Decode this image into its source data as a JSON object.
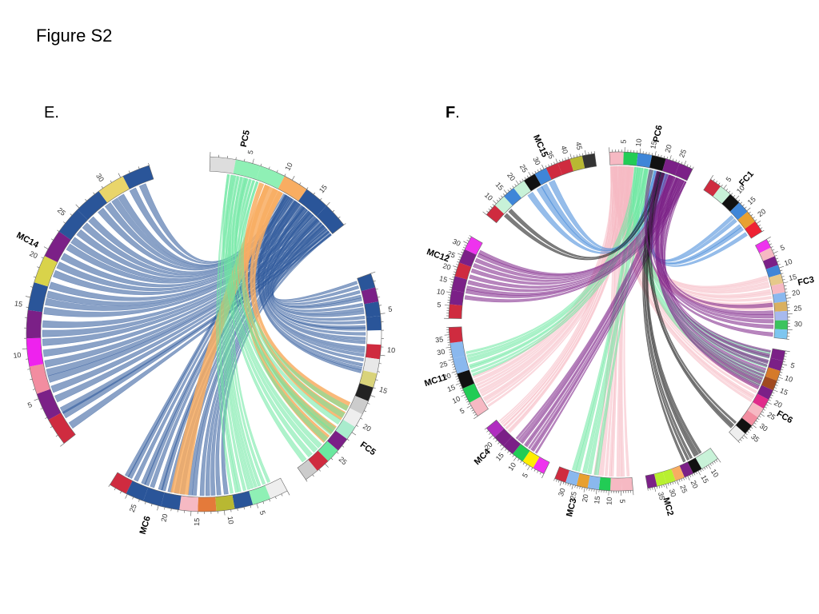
{
  "figure_title": "Figure S2",
  "colors": {
    "blue": "#2a5599",
    "orange": "#f8ad62",
    "green": "#6be8a0",
    "purple": "#7b2087",
    "pink": "#f6b9c3",
    "black": "#111111",
    "lightblue": "#3f86d8"
  },
  "panels": [
    {
      "id": "E",
      "label_text": "E",
      "label_punct": ".",
      "chromosomes": [
        {
          "name": "PC5",
          "ticks": [
            "5",
            "10",
            "15"
          ],
          "segments": [
            "#dddddd",
            "#8ff0b5",
            "#8ff0b5",
            "#f8ad62",
            "#2a5599",
            "#2a5599"
          ]
        },
        {
          "name": "FC5",
          "ticks": [
            "5",
            "10",
            "15",
            "20",
            "25"
          ],
          "segments": [
            "#2a5599",
            "#7b2087",
            "#2a5599",
            "#2a5599",
            "#ffffff",
            "#cf2b3f",
            "#e8e8e8",
            "#d9d37a",
            "#222222",
            "#cccccc",
            "#eeeeee",
            "#a9eccd",
            "#7b2087",
            "#6be8a0",
            "#cf2b3f",
            "#cccccc"
          ]
        },
        {
          "name": "MC6",
          "ticks": [
            "5",
            "10",
            "15",
            "20",
            "25"
          ],
          "segments": [
            "#eeeeee",
            "#8ff0b5",
            "#2a5599",
            "#b8b832",
            "#e47a3a",
            "#f6b9c3",
            "#2a5599",
            "#2a5599",
            "#2a5599",
            "#cf2b3f"
          ]
        },
        {
          "name": "MC14",
          "ticks": [
            "5",
            "10",
            "15",
            "20",
            "25",
            "30"
          ],
          "segments": [
            "#cf2b3f",
            "#7b2087",
            "#f28da0",
            "#ee22ee",
            "#7b2087",
            "#2a5599",
            "#d9d34a",
            "#7b2087",
            "#2a5599",
            "#2a5599",
            "#e9d56a",
            "#2a5599"
          ]
        }
      ]
    },
    {
      "id": "F",
      "label_text": "F",
      "label_punct": ".",
      "chromosomes": [
        {
          "name": "PC6",
          "ticks": [
            "5",
            "10",
            "15",
            "20",
            "25"
          ],
          "segments": [
            "#f6b9c3",
            "#22cc55",
            "#3f86d8",
            "#111111",
            "#7b2087",
            "#7b2087"
          ]
        },
        {
          "name": "FC1",
          "ticks": [
            "5",
            "10",
            "15",
            "20"
          ],
          "segments": [
            "#cf2b3f",
            "#c8f2d8",
            "#111111",
            "#3f86d8",
            "#e8a030",
            "#ee2233"
          ]
        },
        {
          "name": "FC3",
          "ticks": [
            "5",
            "10",
            "15",
            "20",
            "25",
            "30"
          ],
          "segments": [
            "#ee33ee",
            "#f6b9c3",
            "#7b2087",
            "#3f86d8",
            "#e6c98a",
            "#f6b9c3",
            "#8ab8ee",
            "#d9b060",
            "#a7b9ee",
            "#3cc35d",
            "#7dc6f0"
          ]
        },
        {
          "name": "FC6",
          "ticks": [
            "5",
            "10",
            "15",
            "20",
            "25",
            "30",
            "35"
          ],
          "segments": [
            "#7b2087",
            "#7b2087",
            "#d57a2a",
            "#a04a20",
            "#7b2087",
            "#e02b8b",
            "#f6b9c3",
            "#f28da0",
            "#111111",
            "#eeeeee"
          ]
        },
        {
          "name": "MC2",
          "ticks": [
            "10",
            "15",
            "20",
            "25",
            "30",
            "35"
          ],
          "segments": [
            "#c8f2d8",
            "#c8f2d8",
            "#111111",
            "#7b2087",
            "#f8ad62",
            "#b8f030",
            "#b8f030",
            "#7b2087"
          ]
        },
        {
          "name": "MC3",
          "ticks": [
            "5",
            "10",
            "15",
            "20",
            "25",
            "30"
          ],
          "segments": [
            "#f6b9c3",
            "#f6b9c3",
            "#22cc55",
            "#8ab8ee",
            "#e8a030",
            "#8ab8ee",
            "#cf2b3f"
          ]
        },
        {
          "name": "MC4",
          "ticks": [
            "5",
            "10",
            "15",
            "20"
          ],
          "segments": [
            "#ee33ee",
            "#ffee00",
            "#22cc55",
            "#7b2087",
            "#7b2087",
            "#b02cc0"
          ]
        },
        {
          "name": "MC11",
          "ticks": [
            "5",
            "10",
            "15",
            "20",
            "25",
            "30",
            "35"
          ],
          "segments": [
            "#f6b9c3",
            "#22cc55",
            "#111111",
            "#8ab8ee",
            "#8ab8ee",
            "#cf2b3f"
          ]
        },
        {
          "name": "MC12",
          "ticks": [
            "5",
            "10",
            "15",
            "20",
            "25",
            "30"
          ],
          "segments": [
            "#cf2b3f",
            "#7b2087",
            "#7b2087",
            "#cf2b3f",
            "#7b2087",
            "#ee33ee"
          ]
        },
        {
          "name": "MC15",
          "ticks": [
            "10",
            "15",
            "20",
            "25",
            "30",
            "35",
            "40",
            "45"
          ],
          "segments": [
            "#cf2b3f",
            "#c8f2d8",
            "#3f86d8",
            "#c8f2d8",
            "#111111",
            "#3f86d8",
            "#cf2b3f",
            "#cf2b3f",
            "#b8b832",
            "#333333"
          ]
        }
      ]
    }
  ]
}
